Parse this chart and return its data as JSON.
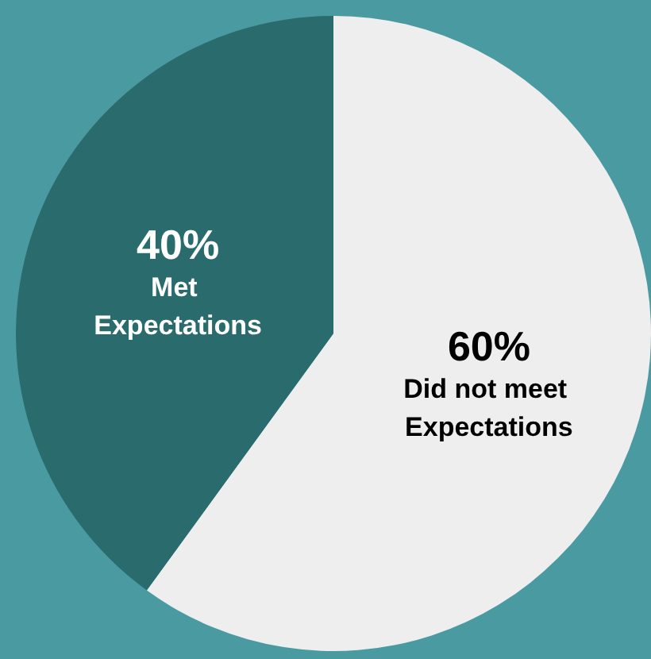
{
  "chart_data": {
    "type": "pie",
    "categories": [
      "Did not meet Expectations",
      "Met Expectations"
    ],
    "values": [
      60,
      40
    ],
    "colors": [
      "#eeeeee",
      "#2a6b6e"
    ],
    "value_labels": [
      "60%",
      "40%"
    ],
    "legend": false
  }
}
